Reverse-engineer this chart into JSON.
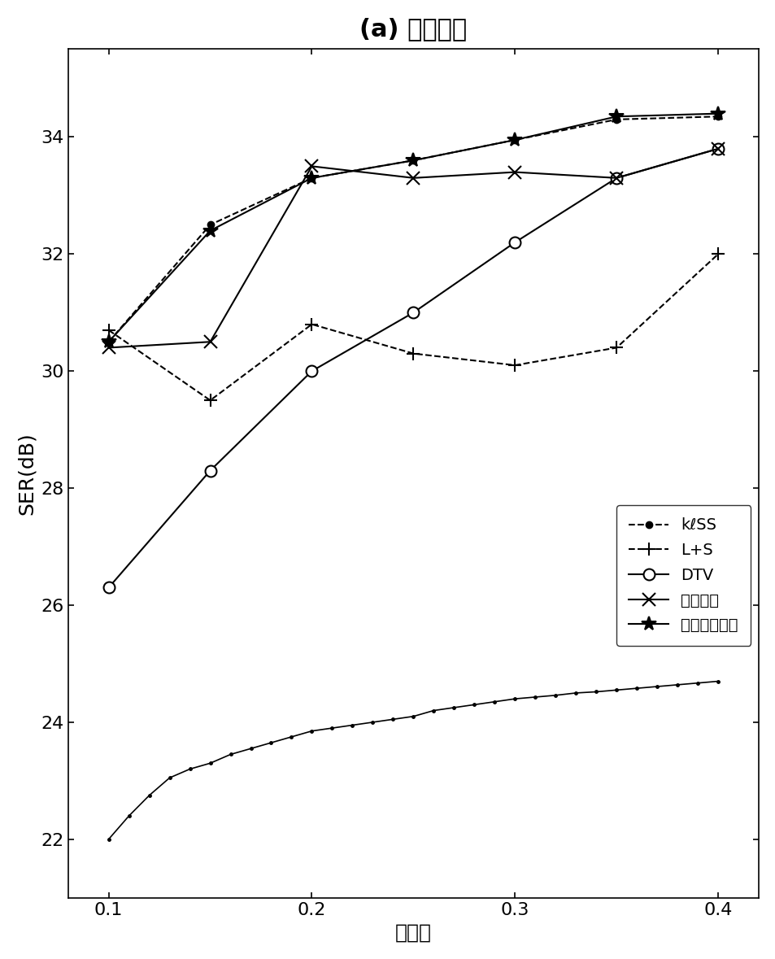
{
  "title": "(a) 心脏灌注",
  "xlabel": "采样率",
  "ylabel": "SER(dB)",
  "xlim": [
    0.08,
    0.42
  ],
  "ylim": [
    21.0,
    35.5
  ],
  "xticks": [
    0.1,
    0.2,
    0.3,
    0.4
  ],
  "xtick_labels": [
    "0.1",
    "0.2",
    "0.3",
    "0.4"
  ],
  "yticks": [
    22,
    24,
    26,
    28,
    30,
    32,
    34
  ],
  "x_sparse": [
    0.1,
    0.15,
    0.2,
    0.25,
    0.3,
    0.35,
    0.4
  ],
  "series": [
    {
      "label": "kℓSS",
      "y": [
        30.5,
        32.5,
        33.3,
        33.6,
        33.95,
        34.3,
        34.35
      ],
      "color": "#000000",
      "linestyle": "--",
      "marker": ".",
      "markersize": 11,
      "linewidth": 1.5,
      "markerfacecolor": "#000000"
    },
    {
      "label": "L+S",
      "y": [
        30.7,
        29.5,
        30.8,
        30.3,
        30.1,
        30.4,
        32.0
      ],
      "color": "#000000",
      "linestyle": "--",
      "marker": "+",
      "markersize": 12,
      "linewidth": 1.5,
      "markerfacecolor": "#000000"
    },
    {
      "label": "DTV",
      "y": [
        26.3,
        28.3,
        30.0,
        31.0,
        32.2,
        33.3,
        33.8
      ],
      "color": "#000000",
      "linestyle": "-",
      "marker": "o",
      "markersize": 10,
      "linewidth": 1.5,
      "markerfacecolor": "#ffffff"
    },
    {
      "label": "低秩张量",
      "y": [
        30.4,
        30.5,
        33.5,
        33.3,
        33.4,
        33.3,
        33.8
      ],
      "color": "#000000",
      "linestyle": "-",
      "marker": "x",
      "markersize": 12,
      "linewidth": 1.5,
      "markerfacecolor": "#000000"
    },
    {
      "label": "本申请实施例",
      "y": [
        30.5,
        32.4,
        33.3,
        33.6,
        33.95,
        34.35,
        34.4
      ],
      "color": "#000000",
      "linestyle": "-",
      "marker": "*",
      "markersize": 13,
      "linewidth": 1.5,
      "markerfacecolor": "#000000"
    }
  ],
  "bottom_x": [
    0.1,
    0.11,
    0.12,
    0.13,
    0.14,
    0.15,
    0.16,
    0.17,
    0.18,
    0.19,
    0.2,
    0.21,
    0.22,
    0.23,
    0.24,
    0.25,
    0.26,
    0.27,
    0.28,
    0.29,
    0.3,
    0.31,
    0.32,
    0.33,
    0.34,
    0.35,
    0.36,
    0.37,
    0.38,
    0.39,
    0.4
  ],
  "bottom_y": [
    22.0,
    22.4,
    22.75,
    23.05,
    23.2,
    23.3,
    23.45,
    23.55,
    23.65,
    23.75,
    23.85,
    23.9,
    23.95,
    24.0,
    24.05,
    24.1,
    24.2,
    24.25,
    24.3,
    24.35,
    24.4,
    24.43,
    24.46,
    24.5,
    24.52,
    24.55,
    24.58,
    24.61,
    24.64,
    24.67,
    24.7
  ],
  "background_color": "#ffffff",
  "title_fontsize": 22,
  "label_fontsize": 18,
  "tick_fontsize": 16,
  "legend_fontsize": 14
}
